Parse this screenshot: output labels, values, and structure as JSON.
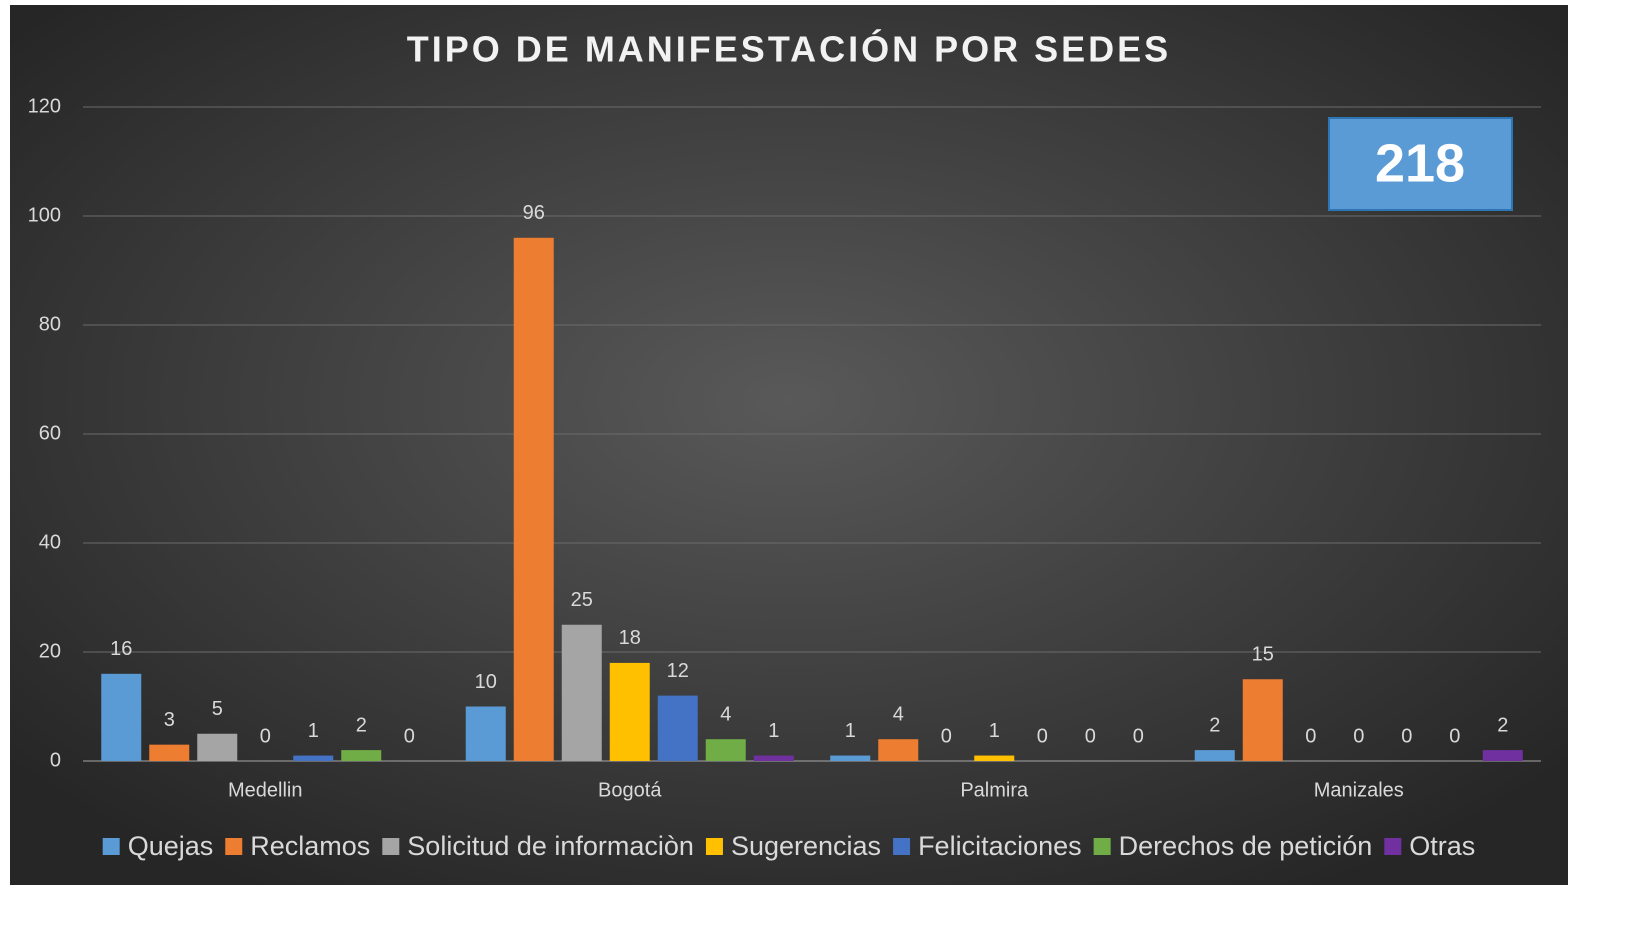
{
  "chart_data": {
    "type": "bar",
    "title": "TIPO DE MANIFESTACIÓN POR SEDES",
    "annotation": "218",
    "categories": [
      "Medellin",
      "Bogotá",
      "Palmira",
      "Manizales"
    ],
    "series": [
      {
        "name": "Quejas",
        "color": "#5b9bd5",
        "values": [
          16,
          10,
          1,
          2
        ]
      },
      {
        "name": "Reclamos",
        "color": "#ed7d31",
        "values": [
          3,
          96,
          4,
          15
        ]
      },
      {
        "name": "Solicitud de informaciòn",
        "color": "#a5a5a5",
        "values": [
          5,
          25,
          0,
          0
        ]
      },
      {
        "name": "Sugerencias",
        "color": "#ffc000",
        "values": [
          0,
          18,
          1,
          0
        ]
      },
      {
        "name": "Felicitaciones",
        "color": "#4472c4",
        "values": [
          1,
          12,
          0,
          0
        ]
      },
      {
        "name": "Derechos de petición",
        "color": "#70ad47",
        "values": [
          2,
          4,
          0,
          0
        ]
      },
      {
        "name": "Otras",
        "color": "#7030a0",
        "values": [
          0,
          1,
          0,
          2
        ]
      }
    ],
    "ylim": [
      0,
      120
    ],
    "yticks": [
      0,
      20,
      40,
      60,
      80,
      100,
      120
    ],
    "grid": true,
    "legend": "bottom"
  }
}
